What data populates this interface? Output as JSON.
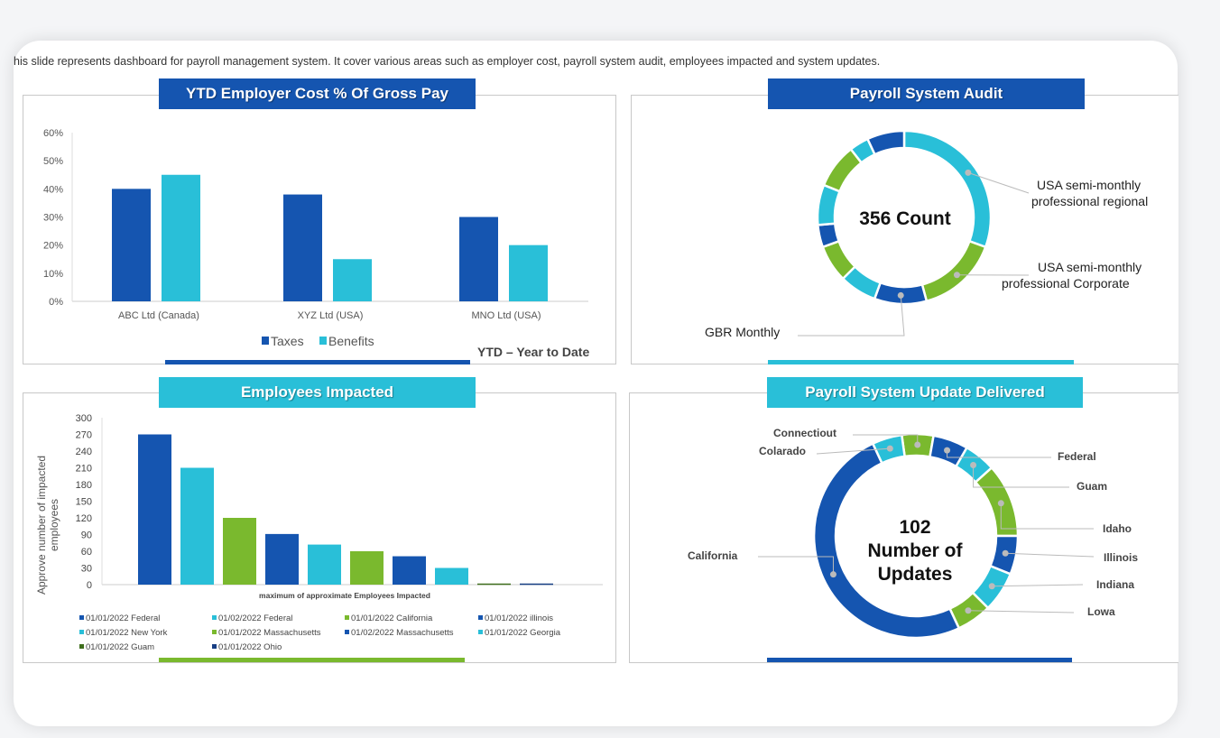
{
  "description": "his slide represents dashboard for payroll management system. It cover various areas such as employer cost, payroll system audit, employees impacted and system updates.",
  "colors": {
    "blue": "#1555B0",
    "cyan": "#29BFD8",
    "green": "#7AB92E",
    "dark_green": "#3E6E1C",
    "navy": "#173E84"
  },
  "panels": {
    "employer_cost": {
      "title": "YTD Employer Cost % Of Gross Pay",
      "note": "YTD – Year to Date"
    },
    "audit": {
      "title": "Payroll System Audit",
      "center_text": "356 Count"
    },
    "employees": {
      "title": "Employees Impacted"
    },
    "updates": {
      "title": "Payroll System Update Delivered",
      "center_line1": "102",
      "center_line2": "Number of",
      "center_line3": "Updates"
    }
  },
  "chart_data": [
    {
      "type": "bar",
      "title": "YTD Employer Cost % Of Gross Pay",
      "categories": [
        "ABC Ltd (Canada)",
        "XYZ Ltd (USA)",
        "MNO Ltd (USA)"
      ],
      "series": [
        {
          "name": "Taxes",
          "values": [
            40,
            38,
            30
          ],
          "color": "#1555B0"
        },
        {
          "name": "Benefits",
          "values": [
            45,
            15,
            20
          ],
          "color": "#29BFD8"
        }
      ],
      "ylim": [
        0,
        60
      ],
      "yticks": [
        "0%",
        "10%",
        "20%",
        "30%",
        "40%",
        "50%",
        "60%"
      ],
      "legend": "bottom",
      "grid": false
    },
    {
      "type": "pie",
      "title": "Payroll System Audit",
      "donut": true,
      "slices": [
        {
          "label": "USA semi-monthly professional regional",
          "value": 110,
          "color": "#29BFD8"
        },
        {
          "label": "USA semi-monthly professional Corporate",
          "value": 55,
          "color": "#7AB92E"
        },
        {
          "label": "GBR Monthly",
          "value": 35,
          "color": "#1555B0"
        },
        {
          "label": "",
          "value": 25,
          "color": "#29BFD8"
        },
        {
          "label": "",
          "value": 25,
          "color": "#7AB92E"
        },
        {
          "label": "",
          "value": 15,
          "color": "#1555B0"
        },
        {
          "label": "",
          "value": 27,
          "color": "#29BFD8"
        },
        {
          "label": "",
          "value": 30,
          "color": "#7AB92E"
        },
        {
          "label": "",
          "value": 13,
          "color": "#29BFD8"
        },
        {
          "label": "",
          "value": 25,
          "color": "#1555B0"
        }
      ]
    },
    {
      "type": "bar",
      "title": "Employees Impacted",
      "xlabel": "maximum of approximate Employees Impacted",
      "ylabel": "Approve number of impacted employees",
      "ylim": [
        0,
        300
      ],
      "yticks": [
        0,
        30,
        60,
        90,
        120,
        150,
        180,
        210,
        240,
        270,
        300
      ],
      "series": [
        {
          "name": "01/01/2022 Federal",
          "value": 270,
          "color": "#1555B0"
        },
        {
          "name": "01/02/2022 Federal",
          "value": 210,
          "color": "#29BFD8"
        },
        {
          "name": "01/01/2022 California",
          "value": 120,
          "color": "#7AB92E"
        },
        {
          "name": "01/01/2022 illinois",
          "value": 91,
          "color": "#1555B0"
        },
        {
          "name": "01/01/2022 New  York",
          "value": 72,
          "color": "#29BFD8"
        },
        {
          "name": "01/01/2022 Massachusetts",
          "value": 60,
          "color": "#7AB92E"
        },
        {
          "name": "01/02/2022 Massachusetts",
          "value": 51,
          "color": "#1555B0"
        },
        {
          "name": "01/01/2022 Georgia",
          "value": 30,
          "color": "#29BFD8"
        },
        {
          "name": "01/01/2022 Guam",
          "value": 2,
          "color": "#3E6E1C"
        },
        {
          "name": "01/01/2022 Ohio",
          "value": 2,
          "color": "#173E84"
        }
      ],
      "legend": "bottom"
    },
    {
      "type": "pie",
      "title": "Payroll System Update Delivered",
      "donut": true,
      "slices": [
        {
          "label": "Connectiout",
          "value": 18,
          "color": "#7AB92E"
        },
        {
          "label": "Federal",
          "value": 20,
          "color": "#1555B0"
        },
        {
          "label": "Guam",
          "value": 18,
          "color": "#29BFD8"
        },
        {
          "label": "Idaho",
          "value": 42,
          "color": "#7AB92E"
        },
        {
          "label": "Illinois",
          "value": 22,
          "color": "#1555B0"
        },
        {
          "label": "Indiana",
          "value": 23,
          "color": "#29BFD8"
        },
        {
          "label": "Lowa",
          "value": 20,
          "color": "#7AB92E"
        },
        {
          "label": "California",
          "value": 180,
          "color": "#1555B0"
        },
        {
          "label": "Colarado",
          "value": 17,
          "color": "#29BFD8"
        }
      ]
    }
  ]
}
